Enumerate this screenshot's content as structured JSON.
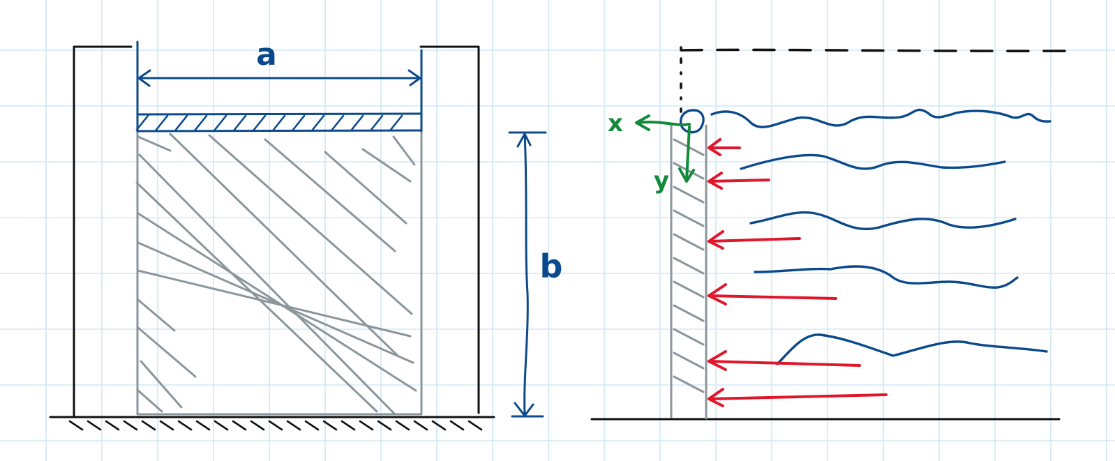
{
  "colors": {
    "grid": "#cfe8f7",
    "ink": "#111111",
    "blue": "#0a4a8c",
    "gray": "#8a969c",
    "red": "#e0162b",
    "green": "#138a3a",
    "background": "#ffffff"
  },
  "labels": {
    "dim_a": "a",
    "dim_b": "b",
    "axis_x": "x",
    "axis_y": "y"
  }
}
